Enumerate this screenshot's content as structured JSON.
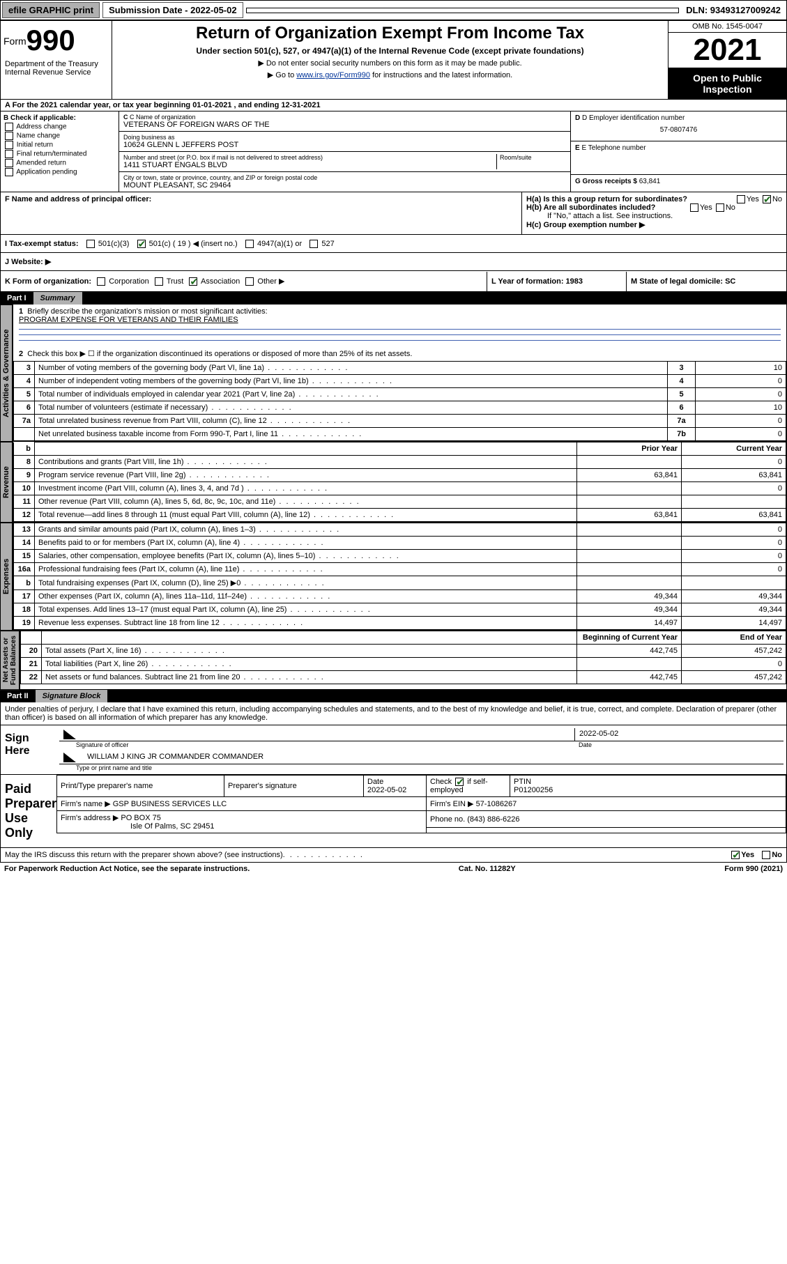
{
  "topbar": {
    "efile": "efile GRAPHIC print",
    "submission_label": "Submission Date - 2022-05-02",
    "dln": "DLN: 93493127009242"
  },
  "header": {
    "form_prefix": "Form",
    "form_number": "990",
    "title": "Return of Organization Exempt From Income Tax",
    "subtitle": "Under section 501(c), 527, or 4947(a)(1) of the Internal Revenue Code (except private foundations)",
    "note1": "▶ Do not enter social security numbers on this form as it may be made public.",
    "note2_pre": "▶ Go to ",
    "note2_link": "www.irs.gov/Form990",
    "note2_post": " for instructions and the latest information.",
    "dept": "Department of the Treasury\nInternal Revenue Service",
    "omb": "OMB No. 1545-0047",
    "year": "2021",
    "open": "Open to Public Inspection"
  },
  "rowA": "A For the 2021 calendar year, or tax year beginning 01-01-2021   , and ending 12-31-2021",
  "colB": {
    "title": "B Check if applicable:",
    "items": [
      "Address change",
      "Name change",
      "Initial return",
      "Final return/terminated",
      "Amended return",
      "Application pending"
    ]
  },
  "org": {
    "name_lbl": "C Name of organization",
    "name": "VETERANS OF FOREIGN WARS OF THE",
    "dba_lbl": "Doing business as",
    "dba": "10624 GLENN L JEFFERS POST",
    "street_lbl": "Number and street (or P.O. box if mail is not delivered to street address)",
    "room_lbl": "Room/suite",
    "street": "1411 STUART ENGALS BLVD",
    "city_lbl": "City or town, state or province, country, and ZIP or foreign postal code",
    "city": "MOUNT PLEASANT, SC  29464"
  },
  "rightcol": {
    "ein_lbl": "D Employer identification number",
    "ein": "57-0807476",
    "phone_lbl": "E Telephone number",
    "phone": "",
    "gross_lbl": "G Gross receipts $",
    "gross": "63,841"
  },
  "rowF": {
    "f_lbl": "F Name and address of principal officer:",
    "ha": "H(a)  Is this a group return for subordinates?",
    "hb": "H(b)  Are all subordinates included?",
    "hb_note": "If \"No,\" attach a list. See instructions.",
    "hc": "H(c)  Group exemption number ▶",
    "yes": "Yes",
    "no": "No"
  },
  "rowI": {
    "i_lbl": "I  Tax-exempt status:",
    "opt1": "501(c)(3)",
    "opt2a": "501(c) ( 19 ) ◀ (insert no.)",
    "opt3": "4947(a)(1) or",
    "opt4": "527",
    "j_lbl": "J  Website: ▶"
  },
  "rowK": {
    "k_lbl": "K Form of organization:",
    "opts": [
      "Corporation",
      "Trust",
      "Association",
      "Other ▶"
    ],
    "l_lbl": "L Year of formation: 1983",
    "m_lbl": "M State of legal domicile: SC"
  },
  "part1": {
    "num": "Part I",
    "title": "Summary"
  },
  "summary": {
    "q1": "Briefly describe the organization's mission or most significant activities:",
    "q1v": "PROGRAM EXPENSE FOR VETERANS AND THEIR FAMILIES",
    "q2": "Check this box ▶ ☐  if the organization discontinued its operations or disposed of more than 25% of its net assets.",
    "rows_ag": [
      {
        "n": "3",
        "d": "Number of voting members of the governing body (Part VI, line 1a)",
        "b": "3",
        "v": "10"
      },
      {
        "n": "4",
        "d": "Number of independent voting members of the governing body (Part VI, line 1b)",
        "b": "4",
        "v": "0"
      },
      {
        "n": "5",
        "d": "Total number of individuals employed in calendar year 2021 (Part V, line 2a)",
        "b": "5",
        "v": "0"
      },
      {
        "n": "6",
        "d": "Total number of volunteers (estimate if necessary)",
        "b": "6",
        "v": "10"
      },
      {
        "n": "7a",
        "d": "Total unrelated business revenue from Part VIII, column (C), line 12",
        "b": "7a",
        "v": "0"
      },
      {
        "n": "",
        "d": "Net unrelated business taxable income from Form 990-T, Part I, line 11",
        "b": "7b",
        "v": "0"
      }
    ],
    "hdr_prior": "Prior Year",
    "hdr_curr": "Current Year",
    "rows_rev": [
      {
        "n": "8",
        "d": "Contributions and grants (Part VIII, line 1h)",
        "p": "",
        "c": "0"
      },
      {
        "n": "9",
        "d": "Program service revenue (Part VIII, line 2g)",
        "p": "63,841",
        "c": "63,841"
      },
      {
        "n": "10",
        "d": "Investment income (Part VIII, column (A), lines 3, 4, and 7d )",
        "p": "",
        "c": "0"
      },
      {
        "n": "11",
        "d": "Other revenue (Part VIII, column (A), lines 5, 6d, 8c, 9c, 10c, and 11e)",
        "p": "",
        "c": ""
      },
      {
        "n": "12",
        "d": "Total revenue—add lines 8 through 11 (must equal Part VIII, column (A), line 12)",
        "p": "63,841",
        "c": "63,841"
      }
    ],
    "rows_exp": [
      {
        "n": "13",
        "d": "Grants and similar amounts paid (Part IX, column (A), lines 1–3)",
        "p": "",
        "c": "0"
      },
      {
        "n": "14",
        "d": "Benefits paid to or for members (Part IX, column (A), line 4)",
        "p": "",
        "c": "0"
      },
      {
        "n": "15",
        "d": "Salaries, other compensation, employee benefits (Part IX, column (A), lines 5–10)",
        "p": "",
        "c": "0"
      },
      {
        "n": "16a",
        "d": "Professional fundraising fees (Part IX, column (A), line 11e)",
        "p": "",
        "c": "0"
      },
      {
        "n": "b",
        "d": "Total fundraising expenses (Part IX, column (D), line 25) ▶0",
        "p": "SHADE",
        "c": "SHADE"
      },
      {
        "n": "17",
        "d": "Other expenses (Part IX, column (A), lines 11a–11d, 11f–24e)",
        "p": "49,344",
        "c": "49,344"
      },
      {
        "n": "18",
        "d": "Total expenses. Add lines 13–17 (must equal Part IX, column (A), line 25)",
        "p": "49,344",
        "c": "49,344"
      },
      {
        "n": "19",
        "d": "Revenue less expenses. Subtract line 18 from line 12",
        "p": "14,497",
        "c": "14,497"
      }
    ],
    "hdr_beg": "Beginning of Current Year",
    "hdr_end": "End of Year",
    "rows_na": [
      {
        "n": "20",
        "d": "Total assets (Part X, line 16)",
        "p": "442,745",
        "c": "457,242"
      },
      {
        "n": "21",
        "d": "Total liabilities (Part X, line 26)",
        "p": "",
        "c": "0"
      },
      {
        "n": "22",
        "d": "Net assets or fund balances. Subtract line 21 from line 20",
        "p": "442,745",
        "c": "457,242"
      }
    ]
  },
  "vtabs": {
    "ag": "Activities & Governance",
    "rev": "Revenue",
    "exp": "Expenses",
    "na": "Net Assets or\nFund Balances"
  },
  "part2": {
    "num": "Part II",
    "title": "Signature Block"
  },
  "penalty": "Under penalties of perjury, I declare that I have examined this return, including accompanying schedules and statements, and to the best of my knowledge and belief, it is true, correct, and complete. Declaration of preparer (other than officer) is based on all information of which preparer has any knowledge.",
  "sign": {
    "here": "Sign Here",
    "sig_lbl": "Signature of officer",
    "date_lbl": "Date",
    "date": "2022-05-02",
    "name": "WILLIAM J KING JR COMMANDER  COMMANDER",
    "name_lbl": "Type or print name and title"
  },
  "paid": {
    "title": "Paid Preparer Use Only",
    "h1": "Print/Type preparer's name",
    "h2": "Preparer's signature",
    "h3": "Date",
    "h3v": "2022-05-02",
    "h4": "Check ☑ if self-employed",
    "h5": "PTIN",
    "h5v": "P01200256",
    "firm_lbl": "Firm's name    ▶",
    "firm": "GSP BUSINESS SERVICES LLC",
    "ein_lbl": "Firm's EIN ▶",
    "ein": "57-1086267",
    "addr_lbl": "Firm's address ▶",
    "addr1": "PO BOX 75",
    "addr2": "Isle Of Palms, SC  29451",
    "phone_lbl": "Phone no.",
    "phone": "(843) 886-6226"
  },
  "footer": {
    "q": "May the IRS discuss this return with the preparer shown above? (see instructions)",
    "yes": "Yes",
    "no": "No",
    "pra": "For Paperwork Reduction Act Notice, see the separate instructions.",
    "cat": "Cat. No. 11282Y",
    "form": "Form 990 (2021)"
  }
}
